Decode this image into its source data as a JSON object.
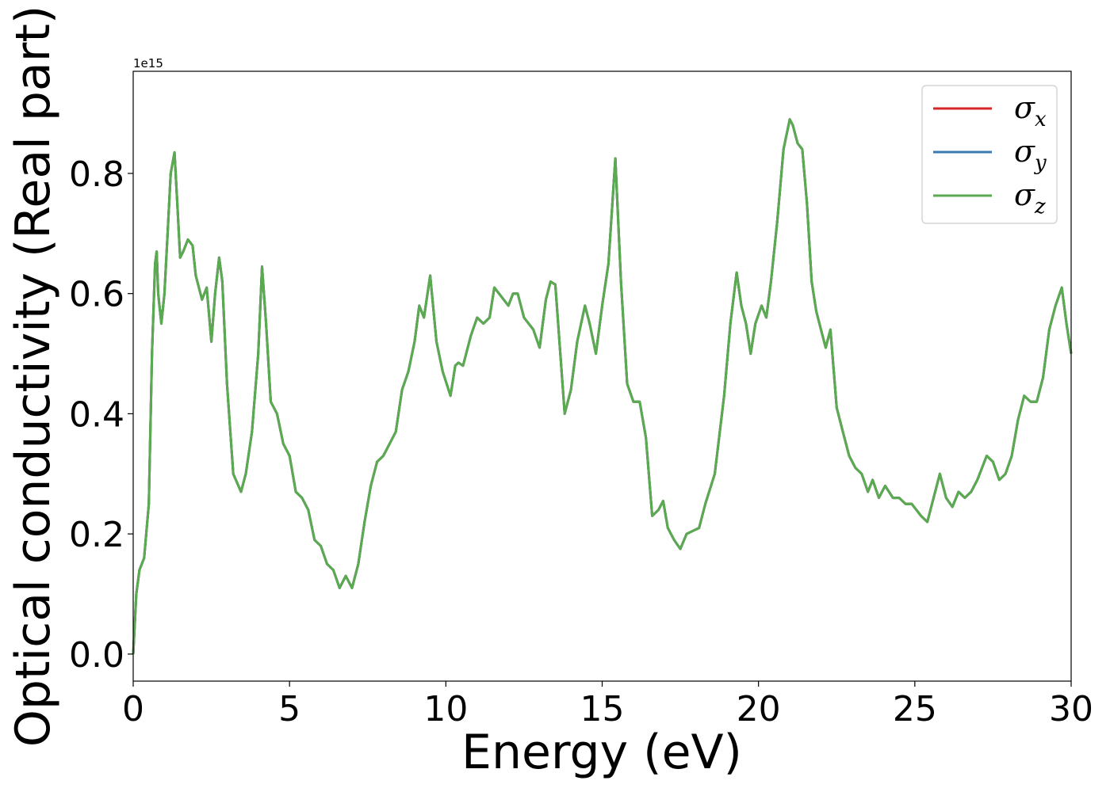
{
  "chart_data": {
    "type": "line",
    "xlabel": "Energy (eV)",
    "ylabel": "Optical conductivity (Real part)",
    "y_offset_label": "1e15",
    "xlim": [
      0,
      30
    ],
    "ylim": [
      -0.045,
      0.97
    ],
    "xticks": [
      0,
      5,
      10,
      15,
      20,
      25,
      30
    ],
    "xtick_labels": [
      "0",
      "5",
      "10",
      "15",
      "20",
      "25",
      "30"
    ],
    "yticks": [
      0.0,
      0.2,
      0.4,
      0.6,
      0.8
    ],
    "ytick_labels": [
      "0.0",
      "0.2",
      "0.4",
      "0.6",
      "0.8"
    ],
    "grid": false,
    "legend_position": "top-right",
    "colors": {
      "x": "#d62728",
      "y": "#3b7bb0",
      "z": "#5aaa50"
    },
    "legend": [
      {
        "symbol": "σ",
        "subscript": "x",
        "color": "#d62728"
      },
      {
        "symbol": "σ",
        "subscript": "y",
        "color": "#3b7bb0"
      },
      {
        "symbol": "σ",
        "subscript": "z",
        "color": "#5aaa50"
      }
    ],
    "x": [
      0.0,
      0.1,
      0.2,
      0.35,
      0.5,
      0.6,
      0.7,
      0.75,
      0.8,
      0.9,
      1.0,
      1.1,
      1.2,
      1.32,
      1.4,
      1.5,
      1.6,
      1.75,
      1.9,
      2.0,
      2.2,
      2.35,
      2.5,
      2.62,
      2.75,
      2.85,
      3.0,
      3.2,
      3.45,
      3.6,
      3.8,
      4.0,
      4.12,
      4.25,
      4.4,
      4.6,
      4.8,
      5.0,
      5.2,
      5.4,
      5.6,
      5.8,
      6.0,
      6.2,
      6.4,
      6.6,
      6.8,
      7.0,
      7.2,
      7.4,
      7.6,
      7.8,
      8.0,
      8.2,
      8.4,
      8.6,
      8.8,
      9.0,
      9.15,
      9.3,
      9.5,
      9.7,
      9.9,
      10.15,
      10.3,
      10.4,
      10.55,
      10.8,
      11.0,
      11.2,
      11.4,
      11.55,
      11.7,
      11.85,
      12.0,
      12.15,
      12.3,
      12.5,
      12.8,
      13.0,
      13.2,
      13.35,
      13.5,
      13.8,
      14.0,
      14.2,
      14.45,
      14.6,
      14.8,
      15.0,
      15.2,
      15.42,
      15.6,
      15.8,
      16.0,
      16.2,
      16.4,
      16.6,
      16.8,
      16.95,
      17.1,
      17.3,
      17.5,
      17.7,
      17.9,
      18.1,
      18.3,
      18.6,
      18.9,
      19.1,
      19.3,
      19.45,
      19.6,
      19.75,
      19.9,
      20.1,
      20.25,
      20.4,
      20.6,
      20.8,
      21.0,
      21.1,
      21.25,
      21.4,
      21.55,
      21.7,
      21.85,
      22.0,
      22.15,
      22.3,
      22.5,
      22.7,
      22.9,
      23.1,
      23.3,
      23.5,
      23.65,
      23.85,
      24.05,
      24.3,
      24.5,
      24.7,
      24.9,
      25.05,
      25.2,
      25.4,
      25.6,
      25.8,
      26.0,
      26.2,
      26.4,
      26.6,
      26.8,
      27.0,
      27.3,
      27.5,
      27.7,
      27.9,
      28.1,
      28.3,
      28.5,
      28.7,
      28.9,
      29.1,
      29.3,
      29.5,
      29.7,
      29.85,
      30.0
    ],
    "series": [
      {
        "values": [
          0.0,
          0.1,
          0.14,
          0.16,
          0.25,
          0.5,
          0.65,
          0.67,
          0.6,
          0.55,
          0.6,
          0.7,
          0.8,
          0.835,
          0.76,
          0.66,
          0.67,
          0.69,
          0.68,
          0.63,
          0.59,
          0.61,
          0.52,
          0.6,
          0.66,
          0.62,
          0.45,
          0.3,
          0.27,
          0.3,
          0.37,
          0.5,
          0.645,
          0.55,
          0.42,
          0.4,
          0.35,
          0.33,
          0.27,
          0.26,
          0.24,
          0.19,
          0.18,
          0.15,
          0.14,
          0.11,
          0.13,
          0.11,
          0.15,
          0.22,
          0.28,
          0.32,
          0.33,
          0.35,
          0.37,
          0.44,
          0.47,
          0.52,
          0.58,
          0.56,
          0.63,
          0.52,
          0.47,
          0.43,
          0.48,
          0.485,
          0.48,
          0.53,
          0.56,
          0.55,
          0.56,
          0.61,
          0.6,
          0.59,
          0.58,
          0.6,
          0.6,
          0.56,
          0.54,
          0.51,
          0.59,
          0.62,
          0.615,
          0.4,
          0.44,
          0.52,
          0.58,
          0.55,
          0.5,
          0.58,
          0.65,
          0.825,
          0.62,
          0.45,
          0.42,
          0.42,
          0.36,
          0.23,
          0.24,
          0.255,
          0.21,
          0.19,
          0.175,
          0.2,
          0.205,
          0.21,
          0.25,
          0.3,
          0.43,
          0.55,
          0.635,
          0.58,
          0.55,
          0.5,
          0.55,
          0.58,
          0.56,
          0.62,
          0.72,
          0.84,
          0.89,
          0.88,
          0.85,
          0.84,
          0.75,
          0.62,
          0.57,
          0.54,
          0.51,
          0.54,
          0.41,
          0.37,
          0.33,
          0.31,
          0.3,
          0.27,
          0.29,
          0.26,
          0.28,
          0.26,
          0.26,
          0.25,
          0.25,
          0.24,
          0.23,
          0.22,
          0.26,
          0.3,
          0.26,
          0.245,
          0.27,
          0.26,
          0.27,
          0.29,
          0.33,
          0.32,
          0.29,
          0.3,
          0.33,
          0.39,
          0.43,
          0.42,
          0.42,
          0.46,
          0.54,
          0.58,
          0.61,
          0.55,
          0.5
        ]
      }
    ]
  }
}
